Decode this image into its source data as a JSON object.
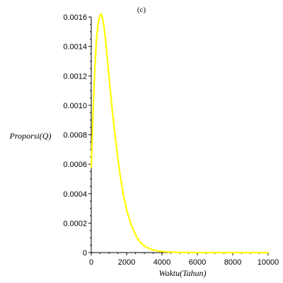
{
  "chart_data": {
    "type": "line",
    "title": "(c)",
    "xlabel": "Waktu(Tahun)",
    "ylabel": "Proporsi(Q)",
    "xlim": [
      0,
      10000
    ],
    "ylim": [
      0,
      0.0016
    ],
    "x_ticks": [
      0,
      2000,
      4000,
      6000,
      8000,
      10000
    ],
    "x_tick_labels": [
      "0",
      "2000",
      "4000",
      "6000",
      "8000",
      "10000"
    ],
    "y_ticks": [
      0,
      0.0002,
      0.0004,
      0.0006,
      0.0008,
      0.001,
      0.0012,
      0.0014,
      0.0016
    ],
    "y_tick_labels": [
      "0",
      "0.0002",
      "0.0004",
      "0.0006",
      "0.0008",
      "0.0010",
      "0.0012",
      "0.0014",
      "0.0016"
    ],
    "grid": false,
    "series": [
      {
        "color": "#ffff00",
        "x": [
          0,
          100,
          200,
          300,
          400,
          500,
          550,
          600,
          700,
          800,
          900,
          1000,
          1200,
          1400,
          1600,
          1800,
          2000,
          2250,
          2500,
          2750,
          3000,
          3250,
          3500,
          3750,
          4000,
          4500,
          5000,
          6000,
          7000,
          8000,
          9000,
          10000
        ],
        "y": [
          0.00058,
          0.00095,
          0.00125,
          0.00146,
          0.00157,
          0.00161,
          0.00162,
          0.00161,
          0.00155,
          0.00145,
          0.00133,
          0.0012,
          0.00095,
          0.00074,
          0.00055,
          0.0004,
          0.00029,
          0.00019,
          0.00012,
          7e-05,
          4.5e-05,
          2.8e-05,
          1.8e-05,
          1.1e-05,
          7e-06,
          3e-06,
          1.2e-06,
          2e-07,
          5e-08,
          1e-08,
          0.0,
          0.0
        ]
      }
    ]
  }
}
